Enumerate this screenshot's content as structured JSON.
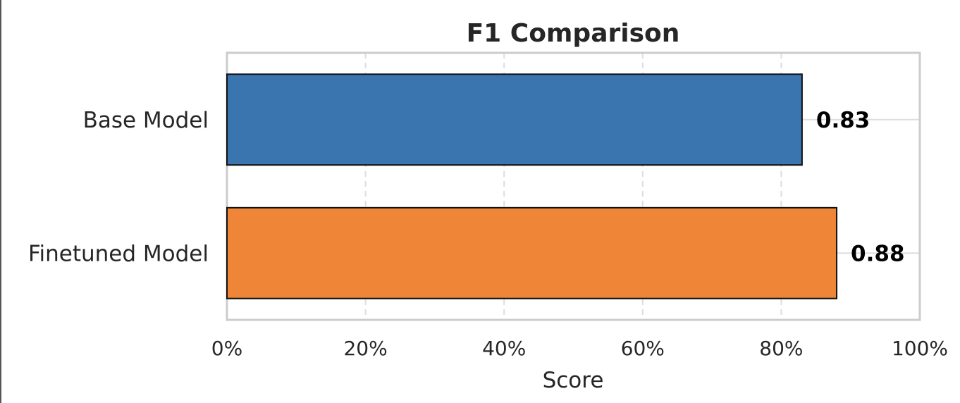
{
  "chart_data": {
    "type": "bar",
    "orientation": "horizontal",
    "title": "F1 Comparison",
    "xlabel": "Score",
    "ylabel": "",
    "categories": [
      "Base Model",
      "Finetuned Model"
    ],
    "values": [
      0.83,
      0.88
    ],
    "value_labels": [
      "0.83",
      "0.88"
    ],
    "bar_colors": [
      "#3A75AF",
      "#EE8537"
    ],
    "xlim": [
      0,
      1
    ],
    "x_ticks": [
      0,
      0.2,
      0.4,
      0.6,
      0.8,
      1.0
    ],
    "x_tick_labels": [
      "0%",
      "20%",
      "40%",
      "60%",
      "80%",
      "100%"
    ],
    "grid": true
  }
}
